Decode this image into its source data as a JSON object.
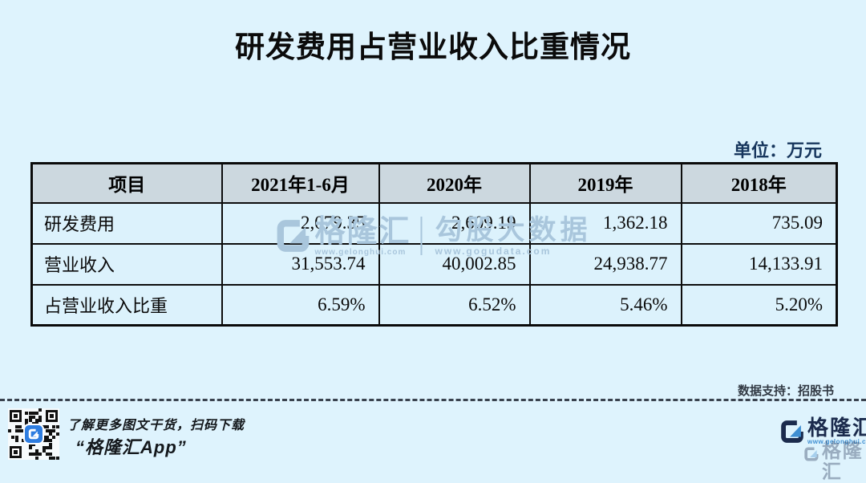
{
  "page": {
    "title": "研发费用占营业收入比重情况",
    "unit_label": "单位：万元",
    "source_note": "数据支持：招股书"
  },
  "chart_data": {
    "type": "table",
    "title": "研发费用占营业收入比重情况",
    "unit": "万元",
    "columns": [
      "项目",
      "2021年1-6月",
      "2020年",
      "2019年",
      "2018年"
    ],
    "rows": [
      {
        "label": "研发费用",
        "values": [
          "2,079.35",
          "2,609.19",
          "1,362.18",
          "735.09"
        ]
      },
      {
        "label": "营业收入",
        "values": [
          "31,553.74",
          "40,002.85",
          "24,938.77",
          "14,133.91"
        ]
      },
      {
        "label": "占营业收入比重",
        "values": [
          "6.59%",
          "6.52%",
          "5.46%",
          "5.20%"
        ]
      }
    ]
  },
  "watermark": {
    "brand": "格隆汇",
    "brand_url": "www.gelonghui.com",
    "partner": "勾股大数据",
    "partner_url": "www.gogudata.com"
  },
  "footer": {
    "caption": "了解更多图文干货，扫码下载",
    "app_name": "“格隆汇App”",
    "brand": "格隆汇",
    "brand_url": "www.gelonghui.com"
  },
  "colors": {
    "background": "#def3fd",
    "table_header_bg": "#ccd8df",
    "table_cell_bg": "#dcf2fc",
    "table_border": "#0d0d0d",
    "unit_text": "#17365d",
    "watermark": "#a9c6dc",
    "brand_navy": "#1b2b4d",
    "brand_blue": "#3f8fd2",
    "qr_logo_blue": "#2e7de0"
  }
}
